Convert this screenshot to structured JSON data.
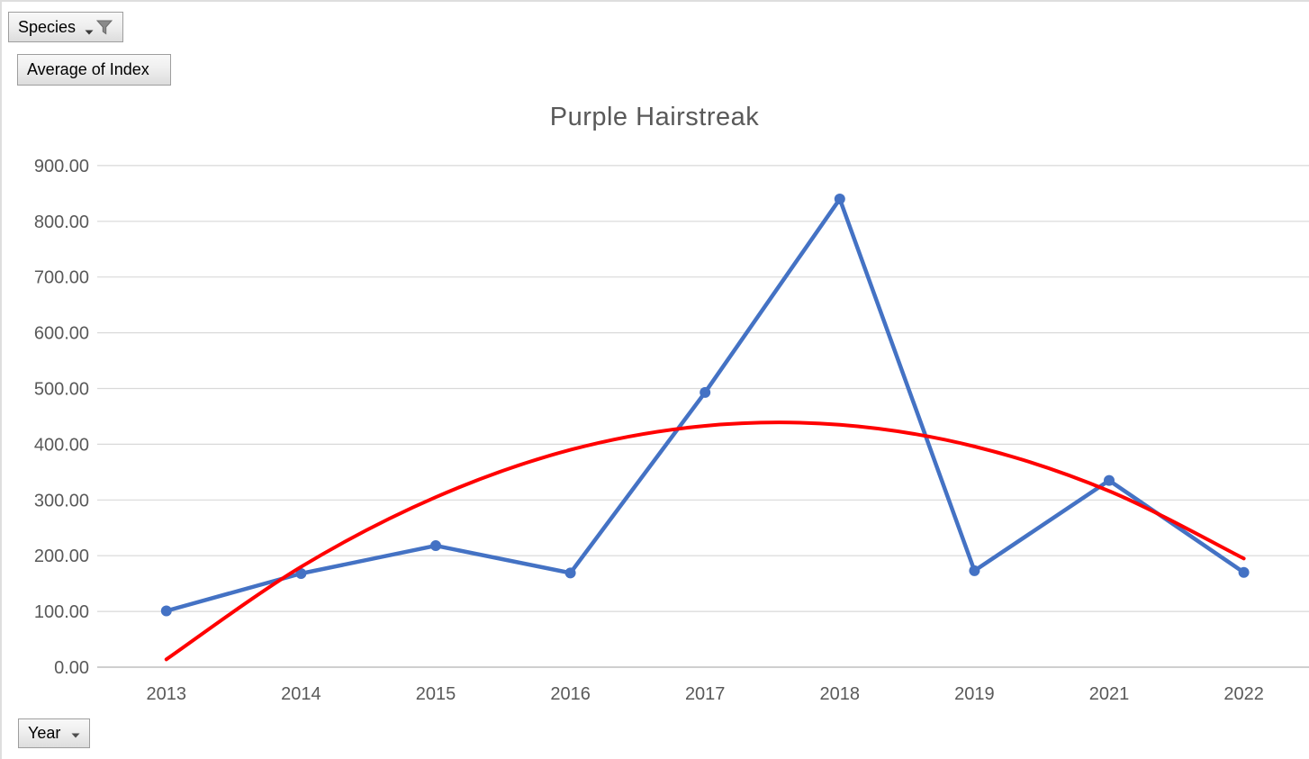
{
  "pivot_buttons": {
    "species": {
      "label": "Species"
    },
    "value_field": {
      "label": "Average of Index"
    },
    "axis_field": {
      "label": "Year"
    }
  },
  "chart_data": {
    "type": "line",
    "title": "Purple Hairstreak",
    "categories": [
      "2013",
      "2014",
      "2015",
      "2016",
      "2017",
      "2018",
      "2019",
      "2021",
      "2022"
    ],
    "series": [
      {
        "name": "Average of Index",
        "color": "#4472C4",
        "marker": "circle",
        "values": [
          101,
          168,
          218,
          169,
          493,
          840,
          173,
          335,
          170
        ]
      }
    ],
    "trendline": {
      "type": "polynomial",
      "order": 2,
      "color": "#FF0000",
      "values_at_categories": [
        14,
        180,
        305,
        390,
        433,
        435,
        396,
        316,
        195
      ]
    },
    "y_axis": {
      "min": 0,
      "max": 900,
      "step": 100,
      "tick_labels": [
        "0.00",
        "100.00",
        "200.00",
        "300.00",
        "400.00",
        "500.00",
        "600.00",
        "700.00",
        "800.00",
        "900.00"
      ]
    },
    "xlabel": "",
    "ylabel": "",
    "grid": true,
    "legend": "none",
    "colors": {
      "gridline": "#D9D9D9",
      "axis_line": "#BFBFBF",
      "axis_text": "#595959",
      "title_text": "#595959"
    }
  }
}
